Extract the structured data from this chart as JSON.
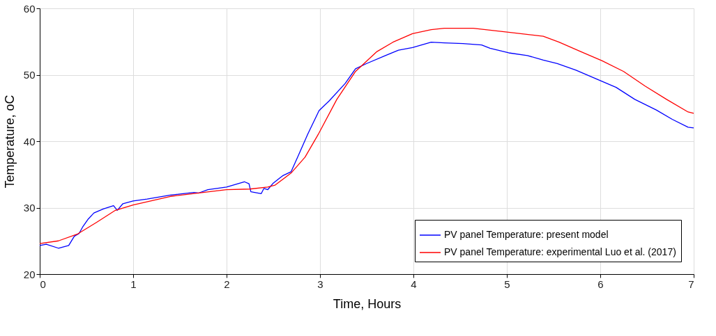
{
  "chart_data": {
    "type": "line",
    "xlabel": "Time,   Hours",
    "ylabel": "Temperature, oC",
    "xlim": [
      0,
      7
    ],
    "ylim": [
      20,
      60
    ],
    "xticks": [
      0,
      1,
      2,
      3,
      4,
      5,
      6,
      7
    ],
    "yticks": [
      20,
      30,
      40,
      50,
      60
    ],
    "grid": true,
    "legend": "bottom right",
    "marker": "none",
    "line_style": "solid",
    "series": [
      {
        "name": "PV panel Temperature: present model",
        "color": "#0000ff",
        "x": [
          0,
          0.07,
          0.2,
          0.31,
          0.37,
          0.42,
          0.46,
          0.52,
          0.58,
          0.68,
          0.79,
          0.83,
          0.89,
          1.0,
          1.15,
          1.4,
          1.65,
          1.7,
          1.8,
          2.0,
          2.19,
          2.24,
          2.26,
          2.37,
          2.4,
          2.44,
          2.5,
          2.6,
          2.69,
          2.77,
          2.87,
          2.99,
          3.1,
          3.27,
          3.38,
          3.5,
          3.7,
          3.84,
          3.99,
          4.19,
          4.33,
          4.53,
          4.73,
          4.82,
          5.02,
          5.22,
          5.39,
          5.54,
          5.74,
          5.97,
          6.17,
          6.37,
          6.6,
          6.77,
          6.94,
          7.0
        ],
        "values": [
          24.3,
          24.5,
          23.9,
          24.3,
          25.7,
          26.1,
          27.1,
          28.3,
          29.2,
          29.8,
          30.3,
          29.6,
          30.6,
          31.0,
          31.3,
          31.9,
          32.3,
          32.2,
          32.7,
          33.1,
          33.9,
          33.6,
          32.4,
          32.1,
          32.9,
          32.7,
          33.7,
          34.8,
          35.4,
          37.9,
          41.1,
          44.6,
          46.1,
          48.7,
          50.9,
          51.7,
          52.9,
          53.7,
          54.1,
          54.9,
          54.8,
          54.7,
          54.5,
          54.0,
          53.3,
          52.9,
          52.2,
          51.7,
          50.7,
          49.3,
          48.1,
          46.3,
          44.7,
          43.3,
          42.1,
          42.0
        ]
      },
      {
        "name": "PV panel Temperature: experimental Luo et al. (2017)",
        "color": "#ff0000",
        "x": [
          0,
          0.2,
          0.4,
          0.61,
          0.81,
          1.0,
          1.4,
          2.0,
          2.25,
          2.44,
          2.52,
          2.69,
          2.84,
          2.98,
          3.18,
          3.38,
          3.61,
          3.78,
          3.99,
          4.19,
          4.33,
          4.64,
          5.02,
          5.39,
          5.56,
          5.79,
          6.02,
          6.25,
          6.48,
          6.71,
          6.94,
          7.0
        ],
        "values": [
          24.6,
          25.0,
          26.0,
          27.8,
          29.6,
          30.4,
          31.7,
          32.7,
          32.8,
          33.1,
          33.4,
          35.2,
          37.6,
          41.0,
          46.3,
          50.5,
          53.5,
          54.9,
          56.2,
          56.8,
          57.0,
          57.0,
          56.4,
          55.8,
          54.9,
          53.5,
          52.1,
          50.5,
          48.3,
          46.3,
          44.4,
          44.2
        ]
      }
    ]
  }
}
